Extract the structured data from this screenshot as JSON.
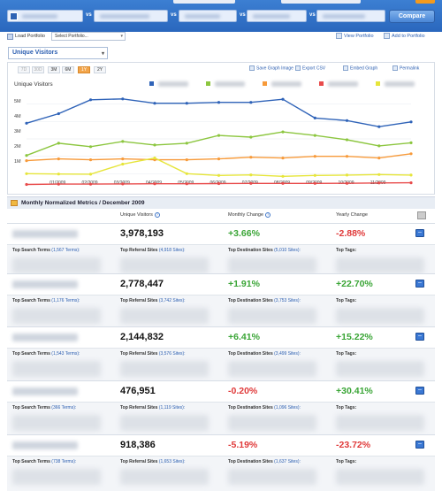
{
  "header": {
    "compare_label": "Compare",
    "vs_label": "vs"
  },
  "portfolio": {
    "load_label": "Load Portfolio",
    "select_value": "Select Portfolio...",
    "view_label": "View Portfolio",
    "add_label": "Add to Portfolio"
  },
  "metric_select": {
    "value": "Unique Visitors"
  },
  "chart_controls": {
    "ranges": [
      "7D",
      "30D",
      "3M",
      "6M",
      "1Y",
      "2Y"
    ],
    "active_range": "1Y",
    "tools": [
      "Save Graph Image",
      "Export CSV",
      "Embed Graph",
      "Permalink"
    ]
  },
  "legend_colors": [
    "#2f63b8",
    "#8cc63f",
    "#f79a3a",
    "#e84b4b",
    "#e6e53a"
  ],
  "chart_data": {
    "type": "line",
    "title": "Unique Visitors",
    "x": [
      "12/2008",
      "01/2009",
      "02/2009",
      "03/2009",
      "04/2009",
      "05/2009",
      "06/2009",
      "07/2009",
      "08/2009",
      "09/2009",
      "10/2009",
      "11/2009",
      "12/2009"
    ],
    "x_tick_labels": [
      "01/2009",
      "02/2009",
      "03/2009",
      "04/2009",
      "05/2009",
      "06/2009",
      "07/2009",
      "08/2009",
      "09/2009",
      "10/2009",
      "11/2009"
    ],
    "y_tick_labels": [
      "1M",
      "2M",
      "3M",
      "4M",
      "5M"
    ],
    "ylim": [
      0,
      6000000
    ],
    "series": [
      {
        "color": "#2f63b8",
        "values": [
          3900000,
          4450000,
          5250000,
          5300000,
          5050000,
          5050000,
          5100000,
          5100000,
          5280000,
          4200000,
          4050000,
          3700000,
          3978193
        ]
      },
      {
        "color": "#8cc63f",
        "values": [
          2050000,
          2750000,
          2550000,
          2850000,
          2650000,
          2750000,
          3200000,
          3100000,
          3400000,
          3200000,
          2950000,
          2600000,
          2778447
        ]
      },
      {
        "color": "#f79a3a",
        "values": [
          1750000,
          1850000,
          1800000,
          1850000,
          1800000,
          1800000,
          1850000,
          1950000,
          1900000,
          2000000,
          2000000,
          1900000,
          2144832
        ]
      },
      {
        "color": "#e6e53a",
        "values": [
          1000000,
          980000,
          970000,
          1550000,
          1900000,
          1000000,
          900000,
          930000,
          850000,
          900000,
          920000,
          950000,
          918386
        ]
      },
      {
        "color": "#e84b4b",
        "values": [
          380000,
          400000,
          400000,
          410000,
          420000,
          420000,
          430000,
          440000,
          440000,
          440000,
          450000,
          470000,
          476951
        ]
      }
    ]
  },
  "metrics": {
    "title": "Monthly Normalized Metrics / December 2009",
    "columns": [
      "Unique Visitors",
      "Monthly Change",
      "Yearly Change"
    ],
    "help_glyph": "?",
    "expand_glyph": "–",
    "rows": [
      {
        "visitors": "3,978,193",
        "monthly": "+3.66%",
        "monthly_sign": "pos",
        "yearly": "-2.88%",
        "yearly_sign": "neg",
        "search": "Top Search Terms",
        "search_cnt": "(1,567 Terms):",
        "referral": "Top Referral Sites",
        "referral_cnt": "(4,918 Sites):",
        "dest": "Top Destination Sites",
        "dest_cnt": "(5,010 Sites):",
        "tags": "Top Tags:"
      },
      {
        "visitors": "2,778,447",
        "monthly": "+1.91%",
        "monthly_sign": "pos",
        "yearly": "+22.70%",
        "yearly_sign": "pos",
        "search": "Top Search Terms",
        "search_cnt": "(1,176 Terms):",
        "referral": "Top Referral Sites",
        "referral_cnt": "(3,742 Sites):",
        "dest": "Top Destination Sites",
        "dest_cnt": "(3,753 Sites):",
        "tags": "Top Tags:"
      },
      {
        "visitors": "2,144,832",
        "monthly": "+6.41%",
        "monthly_sign": "pos",
        "yearly": "+15.22%",
        "yearly_sign": "pos",
        "search": "Top Search Terms",
        "search_cnt": "(1,543 Terms):",
        "referral": "Top Referral Sites",
        "referral_cnt": "(3,576 Sites):",
        "dest": "Top Destination Sites",
        "dest_cnt": "(3,499 Sites):",
        "tags": "Top Tags:"
      },
      {
        "visitors": "476,951",
        "monthly": "-0.20%",
        "monthly_sign": "neg",
        "yearly": "+30.41%",
        "yearly_sign": "pos",
        "search": "Top Search Terms",
        "search_cnt": "(366 Terms):",
        "referral": "Top Referral Sites",
        "referral_cnt": "(1,119 Sites):",
        "dest": "Top Destination Sites",
        "dest_cnt": "(1,096 Sites):",
        "tags": "Top Tags:"
      },
      {
        "visitors": "918,386",
        "monthly": "-5.19%",
        "monthly_sign": "neg",
        "yearly": "-23.72%",
        "yearly_sign": "neg",
        "search": "Top Search Terms",
        "search_cnt": "(738 Terms):",
        "referral": "Top Referral Sites",
        "referral_cnt": "(1,653 Sites):",
        "dest": "Top Destination Sites",
        "dest_cnt": "(1,637 Sites):",
        "tags": "Top Tags:"
      }
    ]
  }
}
